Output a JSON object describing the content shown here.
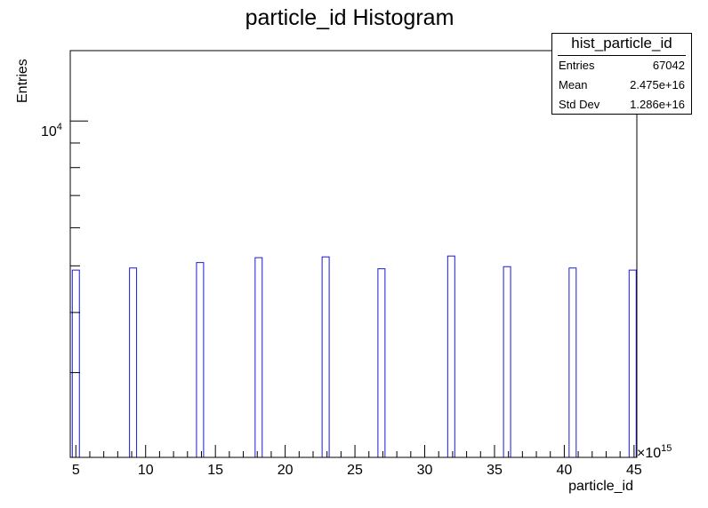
{
  "chart_data": {
    "type": "bar",
    "title": "particle_id Histogram",
    "xlabel": "particle_id",
    "ylabel": "Entries",
    "x_multiplier_label": "×10",
    "x_multiplier_exp": "15",
    "xlim": [
      4.6,
      45.2
    ],
    "ylog": true,
    "ylim": [
      2000,
      14000
    ],
    "x_ticks": [
      "5",
      "10",
      "15",
      "20",
      "25",
      "30",
      "35",
      "40",
      "45"
    ],
    "y_major_label_base": "10",
    "y_major_label_exp": "4",
    "bins": [
      {
        "x": 5.0,
        "value": 4900
      },
      {
        "x": 9.1,
        "value": 4950
      },
      {
        "x": 13.9,
        "value": 5080
      },
      {
        "x": 18.1,
        "value": 5200
      },
      {
        "x": 22.9,
        "value": 5220
      },
      {
        "x": 26.9,
        "value": 4930
      },
      {
        "x": 31.9,
        "value": 5240
      },
      {
        "x": 35.9,
        "value": 4980
      },
      {
        "x": 40.6,
        "value": 4950
      },
      {
        "x": 44.9,
        "value": 4900
      }
    ],
    "stats": {
      "name": "hist_particle_id",
      "entries_label": "Entries",
      "entries": "67042",
      "mean_label": "Mean",
      "mean": "2.475e+16",
      "std_label": "Std Dev",
      "std": "1.286e+16"
    },
    "colors": {
      "line": "#1a1ad9",
      "axis": "#000000"
    }
  }
}
